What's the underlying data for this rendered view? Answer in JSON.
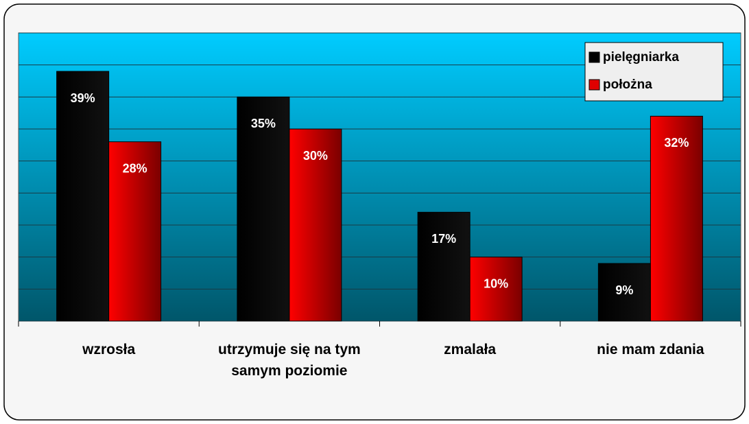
{
  "chart_data": {
    "type": "bar",
    "categories": [
      "wzrosła",
      "utrzymuje się na tym samym poziomie",
      "zmalała",
      "nie mam zdania"
    ],
    "series": [
      {
        "name": "pielęgniarka",
        "color": "#000000",
        "values": [
          39,
          35,
          17,
          9
        ],
        "value_labels": [
          "39%",
          "35%",
          "17%",
          "9%"
        ]
      },
      {
        "name": "położna",
        "color": "#e00000",
        "values": [
          28,
          30,
          10,
          32
        ],
        "value_labels": [
          "28%",
          "30%",
          "10%",
          "32%"
        ]
      }
    ],
    "ylim": [
      0,
      45
    ],
    "yticks": [
      0,
      5,
      10,
      15,
      20,
      25,
      30,
      35,
      40,
      45
    ],
    "grid": true,
    "legend": "upper right"
  }
}
